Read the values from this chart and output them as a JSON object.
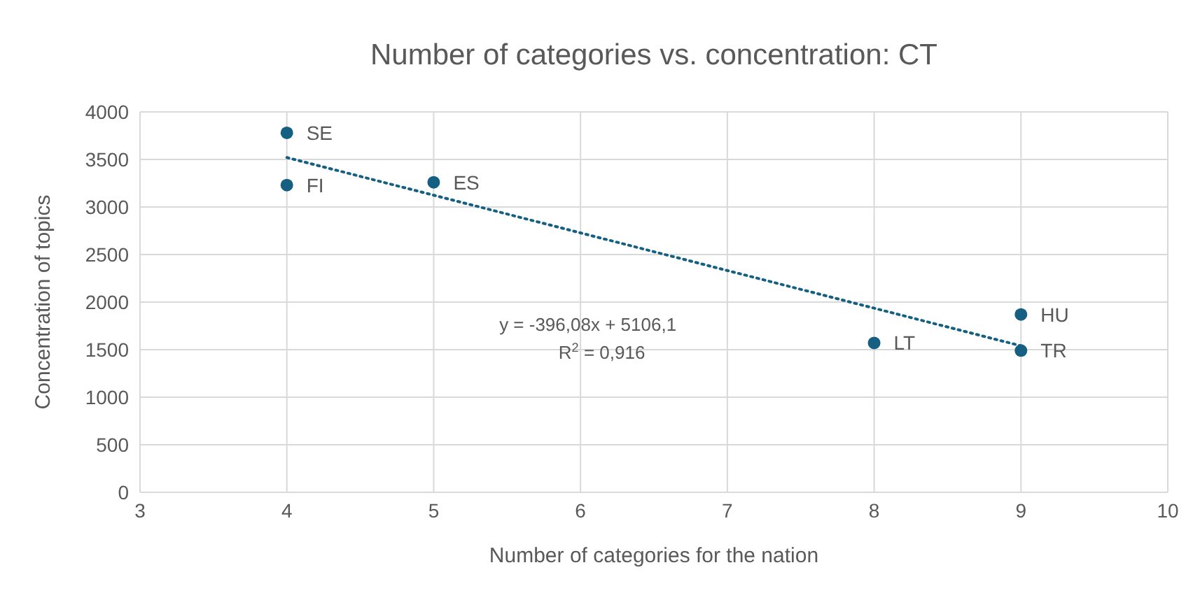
{
  "chart_data": {
    "type": "scatter",
    "title": "Number of categories vs. concentration: CT",
    "xlabel": "Number of categories for the nation",
    "ylabel": "Concentration of topics",
    "series": [
      {
        "color": "#156082",
        "x": [
          4,
          4,
          5,
          8,
          9,
          9
        ],
        "values": [
          3780,
          3230,
          3260,
          1570,
          1870,
          1490
        ],
        "marker": "circle"
      },
      {
        "type": "line",
        "color": "#156082",
        "x": [
          4,
          9
        ],
        "values": [
          3520,
          1540
        ],
        "line_style": "dotted",
        "marker": "none"
      }
    ],
    "annotations": [
      {
        "text": "SE",
        "x": 4,
        "y": 3780
      },
      {
        "text": "FI",
        "x": 4,
        "y": 3230
      },
      {
        "text": "ES",
        "x": 5,
        "y": 3260
      },
      {
        "text": "LT",
        "x": 8,
        "y": 1570
      },
      {
        "text": "HU",
        "x": 9,
        "y": 1870
      },
      {
        "text": "TR",
        "x": 9,
        "y": 1490
      },
      "y = -396,08x + 5106,1",
      "R$^{2}$ = 0,916"
    ],
    "xlim": [
      3,
      10
    ],
    "xticks": [
      3,
      4,
      5,
      6,
      7,
      8,
      9,
      10
    ],
    "ylim": [
      0,
      4000
    ],
    "yticks": [
      0,
      500,
      1000,
      1500,
      2000,
      2500,
      3000,
      3500,
      4000
    ],
    "grid": true,
    "legend": false
  }
}
